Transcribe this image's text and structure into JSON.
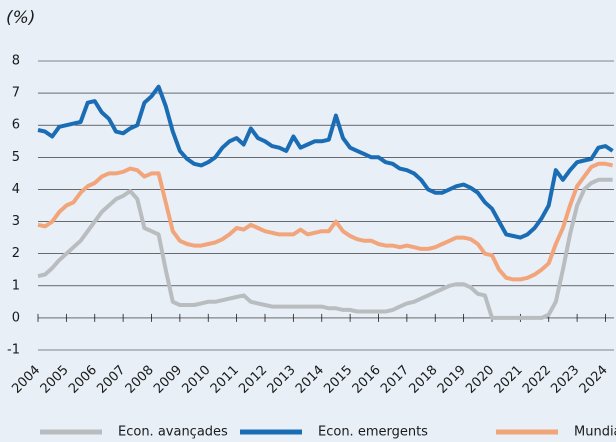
{
  "chart_data": {
    "type": "line",
    "title": "(%)",
    "x": [
      2004,
      2004.25,
      2004.5,
      2004.75,
      2005,
      2005.25,
      2005.5,
      2005.75,
      2006,
      2006.25,
      2006.5,
      2006.75,
      2007,
      2007.25,
      2007.5,
      2007.75,
      2008,
      2008.25,
      2008.5,
      2008.75,
      2009,
      2009.25,
      2009.5,
      2009.75,
      2010,
      2010.25,
      2010.5,
      2010.75,
      2011,
      2011.25,
      2011.5,
      2011.75,
      2012,
      2012.25,
      2012.5,
      2012.75,
      2013,
      2013.25,
      2013.5,
      2013.75,
      2014,
      2014.25,
      2014.5,
      2014.75,
      2015,
      2015.25,
      2015.5,
      2015.75,
      2016,
      2016.25,
      2016.5,
      2016.75,
      2017,
      2017.25,
      2017.5,
      2017.75,
      2018,
      2018.25,
      2018.5,
      2018.75,
      2019,
      2019.25,
      2019.5,
      2019.75,
      2020,
      2020.25,
      2020.5,
      2020.75,
      2021,
      2021.25,
      2021.5,
      2021.75,
      2022,
      2022.25,
      2022.5,
      2022.75,
      2023,
      2023.25,
      2023.5,
      2023.75,
      2024,
      2024.25
    ],
    "series": [
      {
        "name": "Econ. avançades",
        "color": "#b9bdc0",
        "values": [
          1.3,
          1.35,
          1.55,
          1.8,
          2.0,
          2.2,
          2.4,
          2.7,
          3.0,
          3.3,
          3.5,
          3.7,
          3.8,
          3.95,
          3.7,
          2.8,
          2.7,
          2.6,
          1.5,
          0.5,
          0.4,
          0.4,
          0.4,
          0.45,
          0.5,
          0.5,
          0.55,
          0.6,
          0.65,
          0.7,
          0.5,
          0.45,
          0.4,
          0.35,
          0.35,
          0.35,
          0.35,
          0.35,
          0.35,
          0.35,
          0.35,
          0.3,
          0.3,
          0.25,
          0.25,
          0.2,
          0.2,
          0.2,
          0.2,
          0.2,
          0.25,
          0.35,
          0.45,
          0.5,
          0.6,
          0.7,
          0.8,
          0.9,
          1.0,
          1.05,
          1.05,
          0.95,
          0.75,
          0.7,
          0.0,
          0.0,
          0.0,
          0.0,
          0.0,
          0.0,
          0.0,
          0.0,
          0.1,
          0.5,
          1.5,
          2.6,
          3.5,
          4.0,
          4.2,
          4.3,
          4.3,
          4.3
        ]
      },
      {
        "name": "Econ. emergents",
        "color": "#1a6cb4",
        "values": [
          5.85,
          5.8,
          5.65,
          5.95,
          6.0,
          6.05,
          6.1,
          6.7,
          6.75,
          6.4,
          6.2,
          5.8,
          5.75,
          5.9,
          6.0,
          6.7,
          6.9,
          7.2,
          6.6,
          5.8,
          5.2,
          4.95,
          4.8,
          4.75,
          4.85,
          5.0,
          5.3,
          5.5,
          5.6,
          5.4,
          5.9,
          5.6,
          5.5,
          5.35,
          5.3,
          5.2,
          5.65,
          5.3,
          5.4,
          5.5,
          5.5,
          5.55,
          6.3,
          5.6,
          5.3,
          5.2,
          5.1,
          5.0,
          5.0,
          4.85,
          4.8,
          4.65,
          4.6,
          4.5,
          4.3,
          4.0,
          3.9,
          3.9,
          4.0,
          4.1,
          4.15,
          4.05,
          3.9,
          3.6,
          3.4,
          3.0,
          2.6,
          2.55,
          2.5,
          2.6,
          2.8,
          3.1,
          3.5,
          4.6,
          4.3,
          4.6,
          4.85,
          4.9,
          4.95,
          5.3,
          5.35,
          5.2
        ]
      },
      {
        "name": "Mundial",
        "color": "#f2a57a",
        "values": [
          2.9,
          2.85,
          3.0,
          3.3,
          3.5,
          3.6,
          3.9,
          4.1,
          4.2,
          4.4,
          4.5,
          4.5,
          4.55,
          4.65,
          4.6,
          4.4,
          4.5,
          4.5,
          3.6,
          2.7,
          2.4,
          2.3,
          2.25,
          2.25,
          2.3,
          2.35,
          2.45,
          2.6,
          2.8,
          2.75,
          2.9,
          2.8,
          2.7,
          2.65,
          2.6,
          2.6,
          2.6,
          2.75,
          2.6,
          2.65,
          2.7,
          2.7,
          3.0,
          2.7,
          2.55,
          2.45,
          2.4,
          2.4,
          2.3,
          2.25,
          2.25,
          2.2,
          2.25,
          2.2,
          2.15,
          2.15,
          2.2,
          2.3,
          2.4,
          2.5,
          2.5,
          2.45,
          2.3,
          2.0,
          1.95,
          1.5,
          1.25,
          1.2,
          1.2,
          1.25,
          1.35,
          1.5,
          1.7,
          2.3,
          2.8,
          3.5,
          4.1,
          4.4,
          4.7,
          4.8,
          4.8,
          4.75
        ]
      }
    ],
    "xlim": [
      2004,
      2024.3
    ],
    "xticks": [
      2004,
      2005,
      2006,
      2007,
      2008,
      2009,
      2010,
      2011,
      2012,
      2013,
      2014,
      2015,
      2016,
      2017,
      2018,
      2019,
      2020,
      2021,
      2022,
      2023,
      2024
    ],
    "ylim": [
      -1,
      8
    ],
    "yticks": [
      -1,
      0,
      1,
      2,
      3,
      4,
      5,
      6,
      7,
      8
    ],
    "grid": true
  }
}
